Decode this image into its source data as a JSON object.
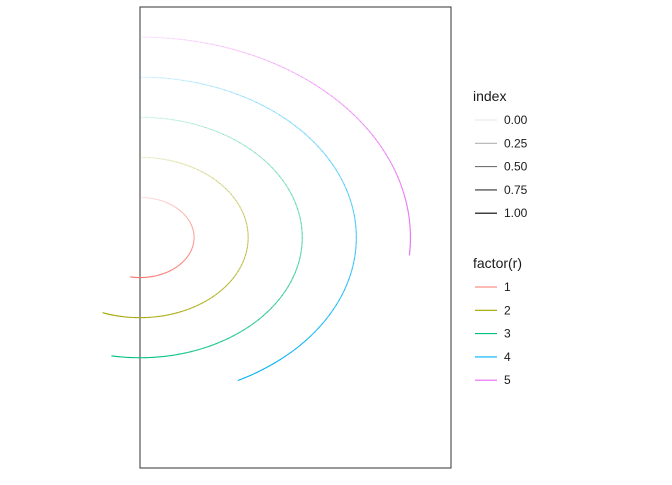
{
  "chart_data": {
    "type": "line",
    "title": "",
    "xlabel": "",
    "ylabel": "",
    "grid": false,
    "legend_position": "right",
    "panel_border": true,
    "xlim": [
      0,
      5.75
    ],
    "ylim": [
      -5.75,
      5.75
    ],
    "series": [
      {
        "name": "1",
        "r": 1,
        "color": "#F8766D",
        "theta_start_deg": 90,
        "theta_end_deg": -100
      },
      {
        "name": "2",
        "r": 2,
        "color": "#A3A500",
        "theta_start_deg": 90,
        "theta_end_deg": -110
      },
      {
        "name": "3",
        "r": 3,
        "color": "#00BF7D",
        "theta_start_deg": 90,
        "theta_end_deg": -100
      },
      {
        "name": "4",
        "r": 4,
        "color": "#00B0F6",
        "theta_start_deg": 90,
        "theta_end_deg": -63
      },
      {
        "name": "5",
        "r": 5,
        "color": "#E76BF3",
        "theta_start_deg": 90,
        "theta_end_deg": -5
      }
    ],
    "legends": [
      {
        "title": "index",
        "entries": [
          "0.00",
          "0.25",
          "0.50",
          "0.75",
          "1.00"
        ],
        "alpha": [
          0.1,
          0.3,
          0.55,
          0.8,
          1.0
        ],
        "color": "#000000"
      },
      {
        "title": "factor(r)",
        "entries": [
          "1",
          "2",
          "3",
          "4",
          "5"
        ],
        "colors": [
          "#F8766D",
          "#A3A500",
          "#00BF7D",
          "#00B0F6",
          "#E76BF3"
        ]
      }
    ]
  }
}
